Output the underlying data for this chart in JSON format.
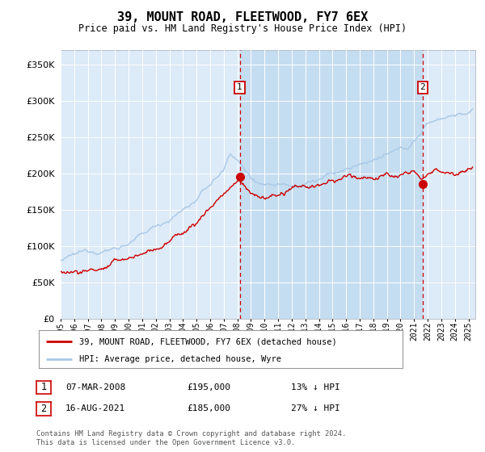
{
  "title": "39, MOUNT ROAD, FLEETWOOD, FY7 6EX",
  "subtitle": "Price paid vs. HM Land Registry's House Price Index (HPI)",
  "hpi_color": "#a8c8e8",
  "price_color": "#cc0000",
  "vline_color": "#cc0000",
  "bg_color": "#ddeaf7",
  "shade_color": "#c5ddf0",
  "ylim": [
    0,
    370000
  ],
  "yticks": [
    0,
    50000,
    100000,
    150000,
    200000,
    250000,
    300000,
    350000
  ],
  "legend_label_price": "39, MOUNT ROAD, FLEETWOOD, FY7 6EX (detached house)",
  "legend_label_hpi": "HPI: Average price, detached house, Wyre",
  "footer": "Contains HM Land Registry data © Crown copyright and database right 2024.\nThis data is licensed under the Open Government Licence v3.0.",
  "sale1_date": "07-MAR-2008",
  "sale1_price": "£195,000",
  "sale1_pct": "13% ↓ HPI",
  "sale1_x": 2008.17,
  "sale1_y": 195000,
  "sale2_date": "16-AUG-2021",
  "sale2_price": "£185,000",
  "sale2_pct": "27% ↓ HPI",
  "sale2_x": 2021.62,
  "sale2_y": 185000,
  "xmin": 1995,
  "xmax": 2025.5
}
